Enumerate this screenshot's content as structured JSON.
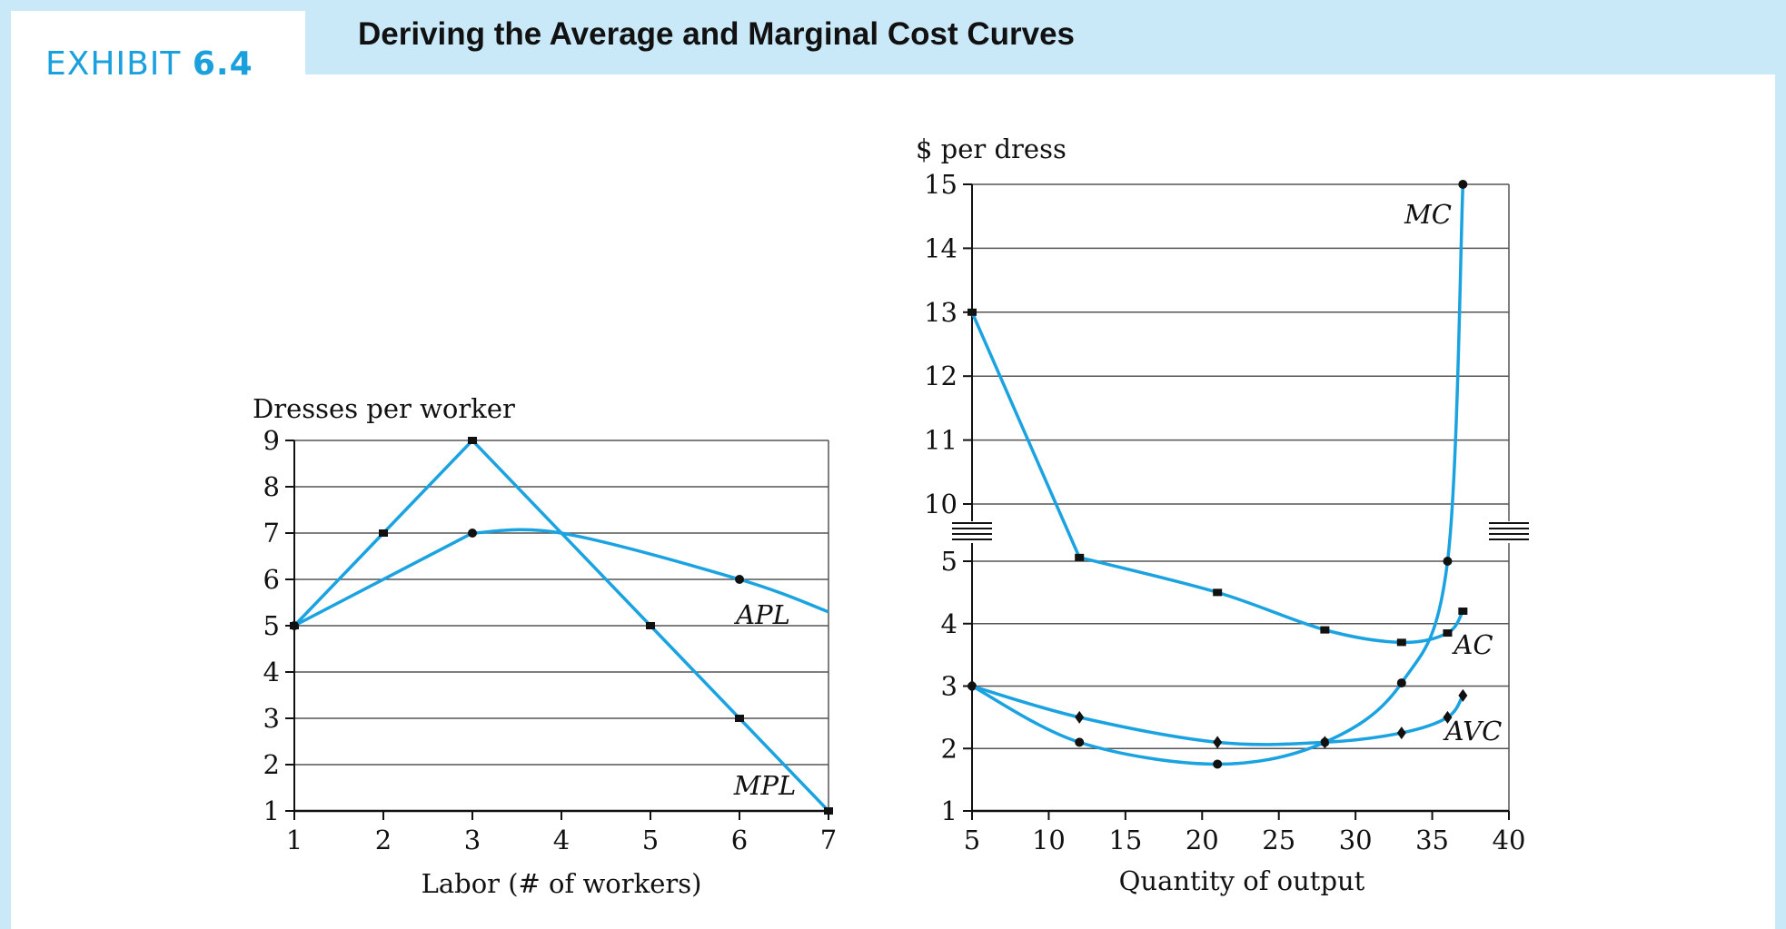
{
  "header": {
    "exhibit_word": "EXHIBIT",
    "exhibit_number": "6.4",
    "title": "Deriving the Average and Marginal Cost Curves"
  },
  "colors": {
    "curve": "#1aa3e0",
    "header_bg": "#c9e8f8",
    "accent": "#1aa0dc"
  },
  "chart_data": [
    {
      "type": "line",
      "ylabel": "Dresses per worker",
      "xlabel": "Labor (# of workers)",
      "xlim": [
        1,
        7
      ],
      "ylim": [
        1,
        9
      ],
      "x_ticks": [
        "1",
        "2",
        "3",
        "4",
        "5",
        "6",
        "7"
      ],
      "y_ticks": [
        "1",
        "2",
        "3",
        "4",
        "5",
        "6",
        "7",
        "8",
        "9"
      ],
      "grid": true,
      "series": [
        {
          "name": "MPL",
          "marker": "square",
          "points": [
            [
              1,
              5
            ],
            [
              2,
              7
            ],
            [
              3,
              9
            ],
            [
              5,
              5
            ],
            [
              6,
              3
            ],
            [
              7,
              1
            ]
          ]
        },
        {
          "name": "APL",
          "marker": "circle",
          "points": [
            [
              1,
              5
            ],
            [
              3,
              7
            ],
            [
              4,
              7
            ],
            [
              6,
              6
            ],
            [
              7,
              5.3
            ]
          ]
        }
      ]
    },
    {
      "type": "line",
      "ylabel": "$ per dress",
      "xlabel": "Quantity of output",
      "xlim": [
        5,
        40
      ],
      "ylim": [
        1,
        15
      ],
      "axis_break": "between 5 and 10",
      "x_ticks": [
        "5",
        "10",
        "15",
        "20",
        "25",
        "30",
        "35",
        "40"
      ],
      "y_ticks": [
        "1",
        "2",
        "3",
        "4",
        "5",
        "10",
        "11",
        "12",
        "13",
        "14",
        "15"
      ],
      "grid": true,
      "series": [
        {
          "name": "MC",
          "marker": "circle",
          "points": [
            [
              5,
              3
            ],
            [
              12,
              2.1
            ],
            [
              21,
              1.75
            ],
            [
              28,
              2.1
            ],
            [
              33,
              3.05
            ],
            [
              36,
              5
            ],
            [
              37,
              15
            ]
          ]
        },
        {
          "name": "AC",
          "marker": "square",
          "points": [
            [
              5,
              13
            ],
            [
              12,
              5.33
            ],
            [
              21,
              4.5
            ],
            [
              28,
              3.9
            ],
            [
              33,
              3.7
            ],
            [
              36,
              3.85
            ],
            [
              37,
              4.2
            ]
          ]
        },
        {
          "name": "AVC",
          "marker": "diamond",
          "points": [
            [
              5,
              3
            ],
            [
              12,
              2.5
            ],
            [
              21,
              2.1
            ],
            [
              28,
              2.1
            ],
            [
              33,
              2.25
            ],
            [
              36,
              2.5
            ],
            [
              37,
              2.85
            ]
          ]
        }
      ]
    }
  ]
}
